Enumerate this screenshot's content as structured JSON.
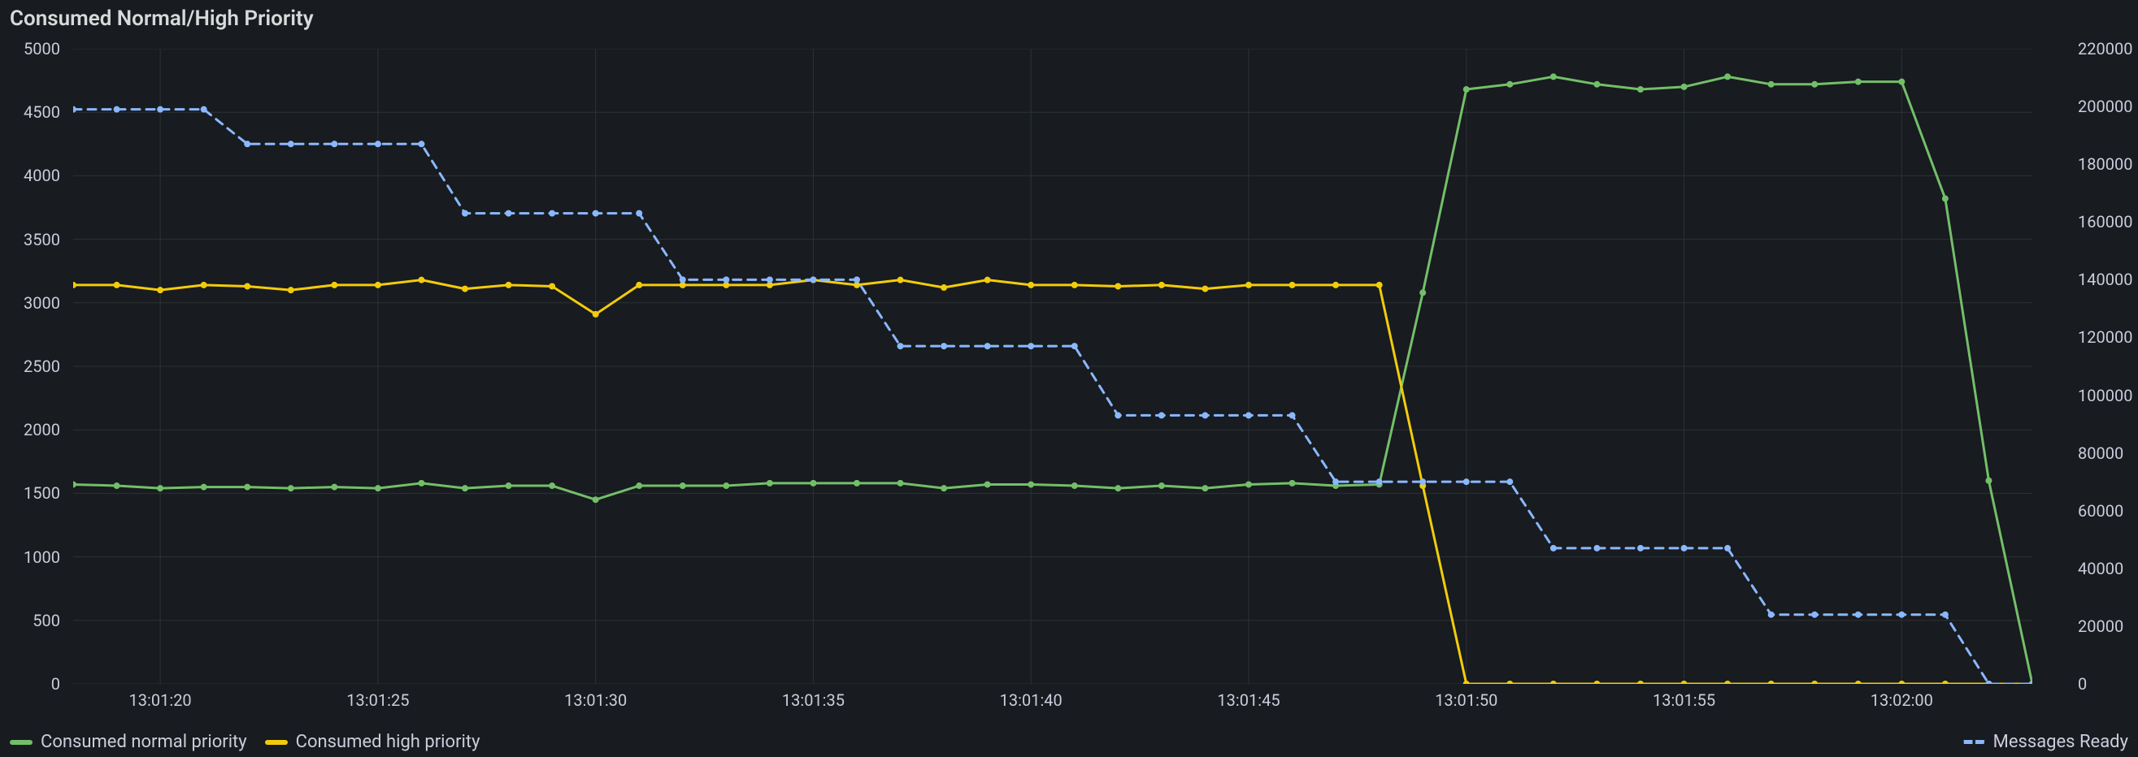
{
  "panel": {
    "title": "Consumed Normal/High Priority",
    "background_color": "#181b1f",
    "grid_color": "#2c3235",
    "text_color": "#ccccdc"
  },
  "chart": {
    "type": "line",
    "x_axis": {
      "type": "time",
      "min_sec": 79278,
      "max_sec": 79323,
      "ticks_sec": [
        79280,
        79285,
        79290,
        79295,
        79300,
        79305,
        79310,
        79315,
        79320
      ],
      "tick_labels": [
        "13:01:20",
        "13:01:25",
        "13:01:30",
        "13:01:35",
        "13:01:40",
        "13:01:45",
        "13:01:50",
        "13:01:55",
        "13:02:00"
      ],
      "label_fontsize": 20
    },
    "left_axis": {
      "min": 0,
      "max": 5000,
      "ticks": [
        0,
        500,
        1000,
        1500,
        2000,
        2500,
        3000,
        3500,
        4000,
        4500,
        5000
      ],
      "label_fontsize": 20
    },
    "right_axis": {
      "min": 0,
      "max": 220000,
      "ticks": [
        0,
        20000,
        40000,
        60000,
        80000,
        100000,
        120000,
        140000,
        160000,
        180000,
        200000,
        220000
      ],
      "label_fontsize": 20
    },
    "series": [
      {
        "name": "Consumed normal priority",
        "color": "#73bf69",
        "axis": "left",
        "style": "solid",
        "marker": "circle",
        "marker_size": 8,
        "line_width": 3,
        "points": [
          [
            79278,
            1570
          ],
          [
            79279,
            1560
          ],
          [
            79280,
            1540
          ],
          [
            79281,
            1550
          ],
          [
            79282,
            1550
          ],
          [
            79283,
            1540
          ],
          [
            79284,
            1550
          ],
          [
            79285,
            1540
          ],
          [
            79286,
            1580
          ],
          [
            79287,
            1540
          ],
          [
            79288,
            1560
          ],
          [
            79289,
            1560
          ],
          [
            79290,
            1450
          ],
          [
            79291,
            1560
          ],
          [
            79292,
            1560
          ],
          [
            79293,
            1560
          ],
          [
            79294,
            1580
          ],
          [
            79295,
            1580
          ],
          [
            79296,
            1580
          ],
          [
            79297,
            1580
          ],
          [
            79298,
            1540
          ],
          [
            79299,
            1570
          ],
          [
            79300,
            1570
          ],
          [
            79301,
            1560
          ],
          [
            79302,
            1540
          ],
          [
            79303,
            1560
          ],
          [
            79304,
            1540
          ],
          [
            79305,
            1570
          ],
          [
            79306,
            1580
          ],
          [
            79307,
            1560
          ],
          [
            79308,
            1570
          ],
          [
            79309,
            3080
          ],
          [
            79310,
            4680
          ],
          [
            79311,
            4720
          ],
          [
            79312,
            4780
          ],
          [
            79313,
            4720
          ],
          [
            79314,
            4680
          ],
          [
            79315,
            4700
          ],
          [
            79316,
            4780
          ],
          [
            79317,
            4720
          ],
          [
            79318,
            4720
          ],
          [
            79319,
            4740
          ],
          [
            79320,
            4740
          ],
          [
            79321,
            3820
          ],
          [
            79322,
            1600
          ],
          [
            79323,
            0
          ]
        ]
      },
      {
        "name": "Consumed high priority",
        "color": "#f2cc0c",
        "axis": "left",
        "style": "solid",
        "marker": "circle",
        "marker_size": 8,
        "line_width": 3,
        "points": [
          [
            79278,
            3140
          ],
          [
            79279,
            3140
          ],
          [
            79280,
            3100
          ],
          [
            79281,
            3140
          ],
          [
            79282,
            3130
          ],
          [
            79283,
            3100
          ],
          [
            79284,
            3140
          ],
          [
            79285,
            3140
          ],
          [
            79286,
            3180
          ],
          [
            79287,
            3110
          ],
          [
            79288,
            3140
          ],
          [
            79289,
            3130
          ],
          [
            79290,
            2910
          ],
          [
            79291,
            3140
          ],
          [
            79292,
            3140
          ],
          [
            79293,
            3140
          ],
          [
            79294,
            3140
          ],
          [
            79295,
            3180
          ],
          [
            79296,
            3140
          ],
          [
            79297,
            3180
          ],
          [
            79298,
            3120
          ],
          [
            79299,
            3180
          ],
          [
            79300,
            3140
          ],
          [
            79301,
            3140
          ],
          [
            79302,
            3130
          ],
          [
            79303,
            3140
          ],
          [
            79304,
            3110
          ],
          [
            79305,
            3140
          ],
          [
            79306,
            3140
          ],
          [
            79307,
            3140
          ],
          [
            79308,
            3140
          ],
          [
            79309,
            1560
          ],
          [
            79310,
            0
          ],
          [
            79311,
            0
          ],
          [
            79312,
            0
          ],
          [
            79313,
            0
          ],
          [
            79314,
            0
          ],
          [
            79315,
            0
          ],
          [
            79316,
            0
          ],
          [
            79317,
            0
          ],
          [
            79318,
            0
          ],
          [
            79319,
            0
          ],
          [
            79320,
            0
          ],
          [
            79321,
            0
          ],
          [
            79322,
            0
          ],
          [
            79323,
            0
          ]
        ]
      },
      {
        "name": "Messages Ready",
        "color": "#8ab8ff",
        "axis": "right",
        "style": "dashed",
        "dash": "10,8",
        "marker": "circle",
        "marker_size": 8,
        "line_width": 3,
        "points": [
          [
            79278,
            199000
          ],
          [
            79279,
            199000
          ],
          [
            79280,
            199000
          ],
          [
            79281,
            199000
          ],
          [
            79282,
            187000
          ],
          [
            79283,
            187000
          ],
          [
            79284,
            187000
          ],
          [
            79285,
            187000
          ],
          [
            79286,
            187000
          ],
          [
            79287,
            163000
          ],
          [
            79288,
            163000
          ],
          [
            79289,
            163000
          ],
          [
            79290,
            163000
          ],
          [
            79291,
            163000
          ],
          [
            79292,
            140000
          ],
          [
            79293,
            140000
          ],
          [
            79294,
            140000
          ],
          [
            79295,
            140000
          ],
          [
            79296,
            140000
          ],
          [
            79297,
            117000
          ],
          [
            79298,
            117000
          ],
          [
            79299,
            117000
          ],
          [
            79300,
            117000
          ],
          [
            79301,
            117000
          ],
          [
            79302,
            93000
          ],
          [
            79303,
            93000
          ],
          [
            79304,
            93000
          ],
          [
            79305,
            93000
          ],
          [
            79306,
            93000
          ],
          [
            79307,
            70000
          ],
          [
            79308,
            70000
          ],
          [
            79309,
            70000
          ],
          [
            79310,
            70000
          ],
          [
            79311,
            70000
          ],
          [
            79312,
            47000
          ],
          [
            79313,
            47000
          ],
          [
            79314,
            47000
          ],
          [
            79315,
            47000
          ],
          [
            79316,
            47000
          ],
          [
            79317,
            24000
          ],
          [
            79318,
            24000
          ],
          [
            79319,
            24000
          ],
          [
            79320,
            24000
          ],
          [
            79321,
            24000
          ],
          [
            79322,
            0
          ],
          [
            79323,
            0
          ]
        ]
      }
    ],
    "legend": {
      "position": "bottom",
      "fontsize": 22
    }
  }
}
